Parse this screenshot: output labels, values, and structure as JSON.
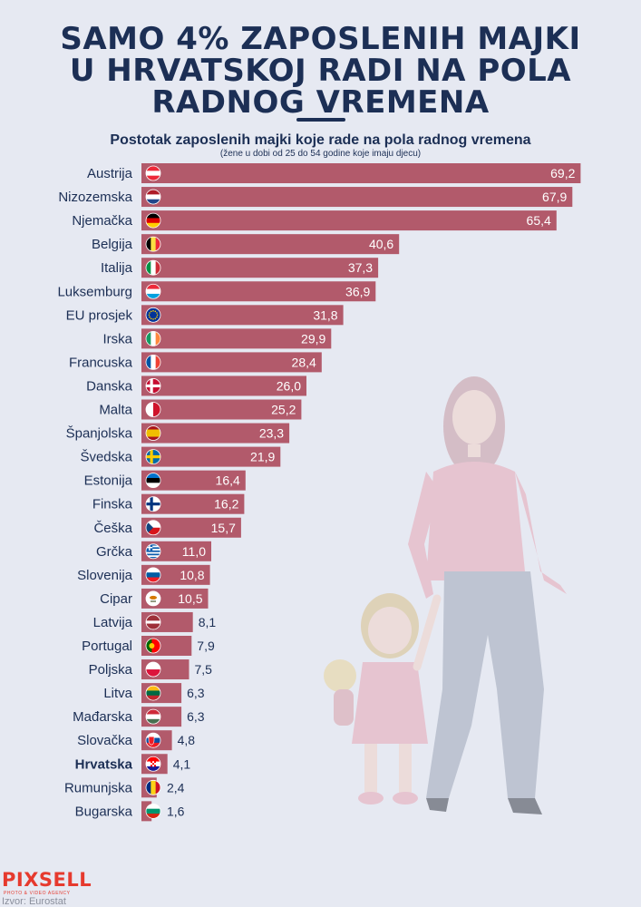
{
  "headline": [
    "SAMO 4% ZAPOSLENIH MAJKI",
    "U HRVATSKOJ RADI NA POLA",
    "RADNOG VREMENA"
  ],
  "colors": {
    "bar": "#b25a6b",
    "text": "#1c2f55",
    "background": "#e6e9f2",
    "brand": "#e63a2e"
  },
  "logo": {
    "name": "PIXSELL",
    "tagline": "PHOTO & VIDEO AGENCY"
  },
  "source": "Izvor: Eurostat",
  "chart_data": {
    "type": "bar",
    "orientation": "horizontal",
    "title": "Postotak zaposlenih majki koje rade na pola radnog vremena",
    "subtitle": "(žene u dobi od 25 do 54 godine koje imaju djecu)",
    "categories": [
      "Austrija",
      "Nizozemska",
      "Njemačka",
      "Belgija",
      "Italija",
      "Luksemburg",
      "EU prosjek",
      "Irska",
      "Francuska",
      "Danska",
      "Malta",
      "Španjolska",
      "Švedska",
      "Estonija",
      "Finska",
      "Češka",
      "Grčka",
      "Slovenija",
      "Cipar",
      "Latvija",
      "Portugal",
      "Poljska",
      "Litva",
      "Mađarska",
      "Slovačka",
      "Hrvatska",
      "Rumunjska",
      "Bugarska"
    ],
    "values": [
      69.2,
      67.9,
      65.4,
      40.6,
      37.3,
      36.9,
      31.8,
      29.9,
      28.4,
      26.0,
      25.2,
      23.3,
      21.9,
      16.4,
      16.2,
      15.7,
      11.0,
      10.8,
      10.5,
      8.1,
      7.9,
      7.5,
      6.3,
      6.3,
      4.8,
      4.1,
      2.4,
      1.6
    ],
    "value_labels": [
      "69,2",
      "67,9",
      "65,4",
      "40,6",
      "37,3",
      "36,9",
      "31,8",
      "29,9",
      "28,4",
      "26,0",
      "25,2",
      "23,3",
      "21,9",
      "16,4",
      "16,2",
      "15,7",
      "11,0",
      "10,8",
      "10,5",
      "8,1",
      "7,9",
      "7,5",
      "6,3",
      "6,3",
      "4,8",
      "4,1",
      "2,4",
      "1,6"
    ],
    "flags": [
      "austria-flag-icon",
      "netherlands-flag-icon",
      "germany-flag-icon",
      "belgium-flag-icon",
      "italy-flag-icon",
      "luxembourg-flag-icon",
      "eu-flag-icon",
      "ireland-flag-icon",
      "france-flag-icon",
      "denmark-flag-icon",
      "malta-flag-icon",
      "spain-flag-icon",
      "sweden-flag-icon",
      "estonia-flag-icon",
      "finland-flag-icon",
      "czechia-flag-icon",
      "greece-flag-icon",
      "slovenia-flag-icon",
      "cyprus-flag-icon",
      "latvia-flag-icon",
      "portugal-flag-icon",
      "poland-flag-icon",
      "lithuania-flag-icon",
      "hungary-flag-icon",
      "slovakia-flag-icon",
      "croatia-flag-icon",
      "romania-flag-icon",
      "bulgaria-flag-icon"
    ],
    "highlight": "Hrvatska",
    "xlim": [
      0,
      70
    ],
    "grid": false,
    "legend": "none"
  }
}
